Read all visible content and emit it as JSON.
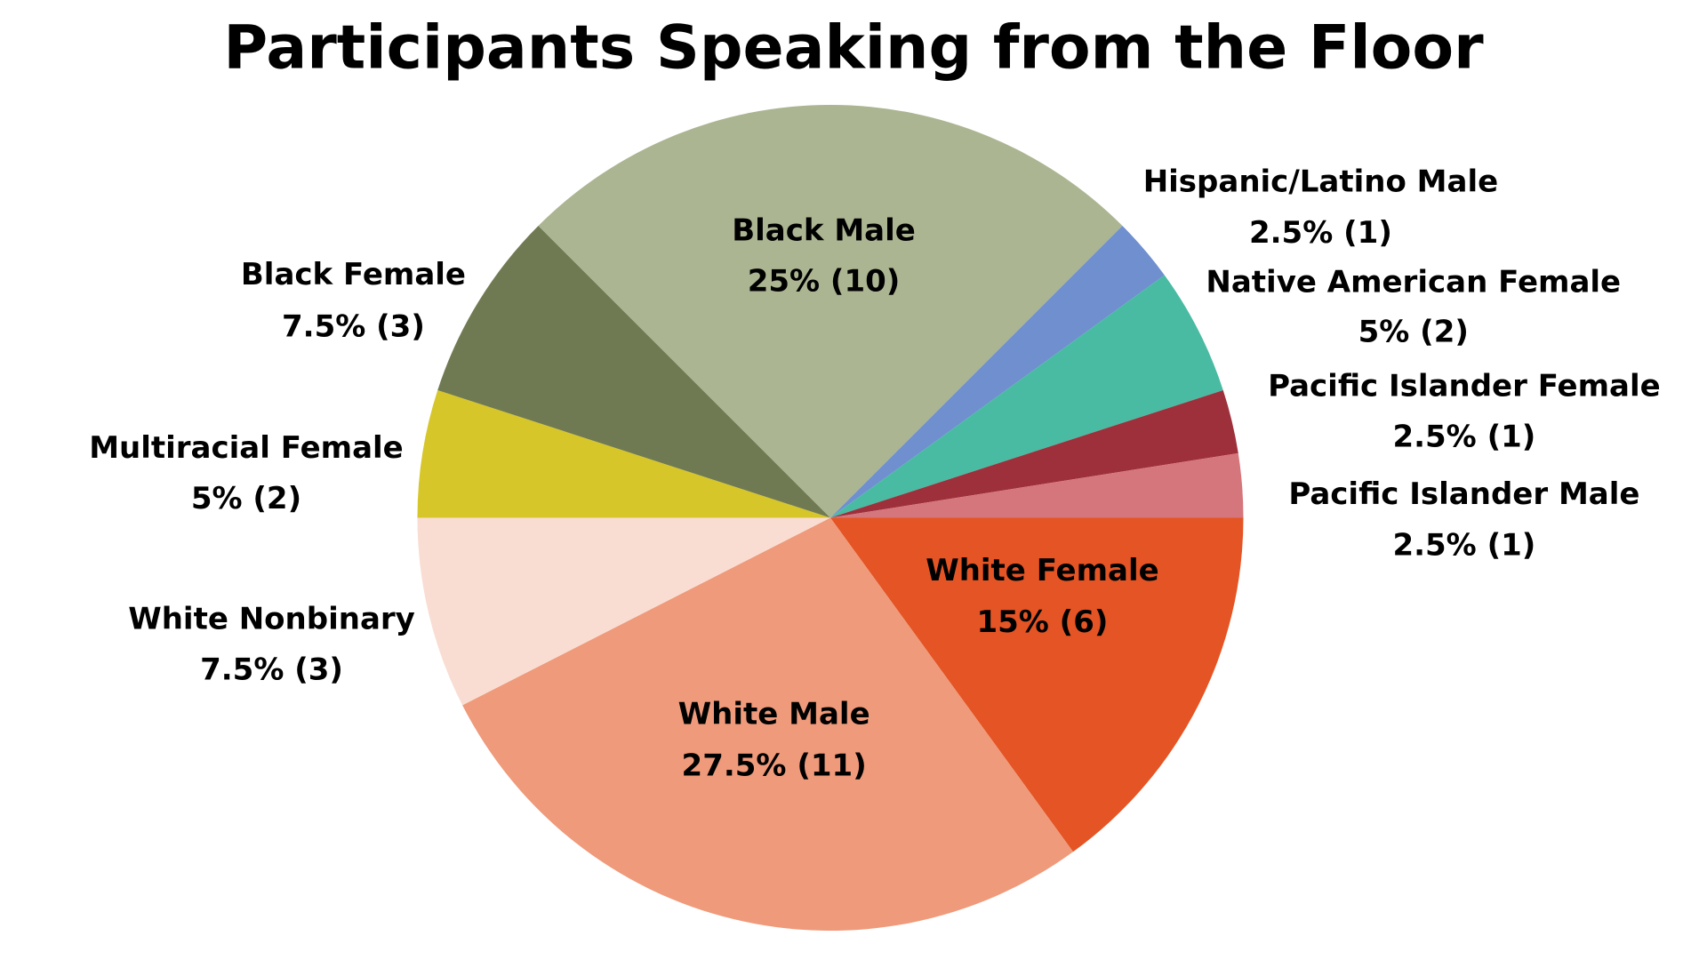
{
  "chart_data": {
    "type": "pie",
    "title": "Participants Speaking from the Floor",
    "categories": [
      "White Female",
      "White Male",
      "White Nonbinary",
      "Multiracial Female",
      "Black Female",
      "Black Male",
      "Hispanic/Latino Male",
      "Native American Female",
      "Pacific Islander Female",
      "Pacific Islander Male"
    ],
    "values": [
      15,
      27.5,
      7.5,
      5,
      7.5,
      25,
      2.5,
      5,
      2.5,
      2.5
    ],
    "value_labels": [
      "15% (6)",
      "27.5% (11)",
      "7.5% (3)",
      "5% (2)",
      "7.5% (3)",
      "25% (10)",
      "2.5% (1)",
      "5% (2)",
      "2.5% (1)",
      "2.5% (1)"
    ],
    "colors": [
      "#e45424",
      "#ef9a7a",
      "#f9ddd3",
      "#d6c62a",
      "#707a52",
      "#abb591",
      "#6f8fcf",
      "#48bba2",
      "#9e303c",
      "#d5767c"
    ]
  }
}
